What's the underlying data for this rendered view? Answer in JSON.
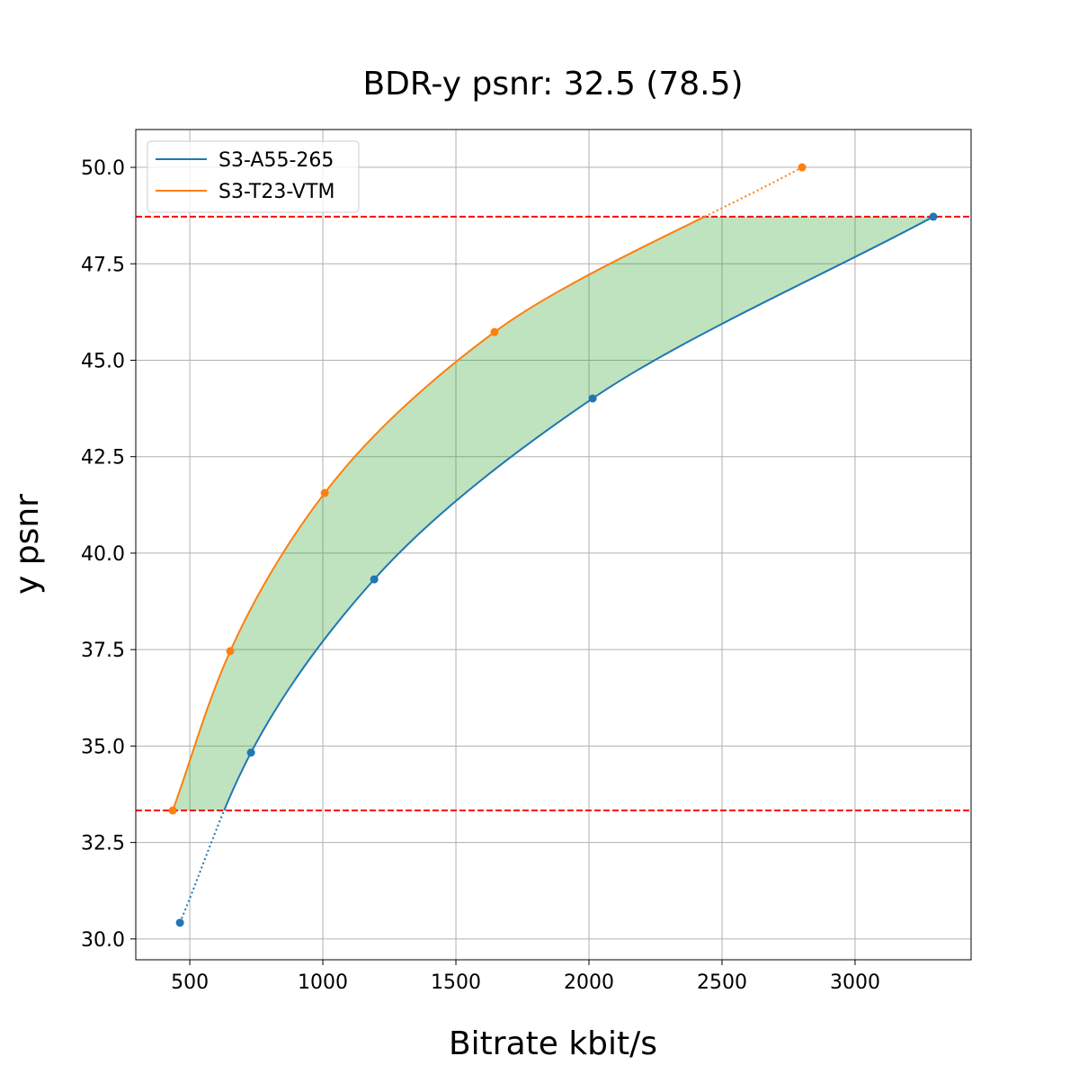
{
  "chart_data": {
    "type": "line",
    "title": "BDR-y psnr: 32.5 (78.5)",
    "xlabel": "Bitrate kbit/s",
    "ylabel": "y psnr",
    "xlim": [
      297,
      3436
    ],
    "ylim": [
      29.46,
      50.98
    ],
    "xticks": [
      500,
      1000,
      1500,
      2000,
      2500,
      3000
    ],
    "yticks": [
      30.0,
      32.5,
      35.0,
      37.5,
      40.0,
      42.5,
      45.0,
      47.5,
      50.0
    ],
    "xtick_labels": [
      "500",
      "1000",
      "1500",
      "2000",
      "2500",
      "3000"
    ],
    "ytick_labels": [
      "30.0",
      "32.5",
      "35.0",
      "37.5",
      "40.0",
      "42.5",
      "45.0",
      "47.5",
      "50.0"
    ],
    "grid": true,
    "legend_position": "top-left",
    "series": [
      {
        "name": "S3-A55-265",
        "color": "#1f77b4",
        "x": [
          463,
          730,
          1193,
          2014,
          3294
        ],
        "y": [
          30.42,
          34.83,
          39.32,
          44.01,
          48.72
        ]
      },
      {
        "name": "S3-T23-VTM",
        "color": "#ff7f0e",
        "x": [
          436,
          652,
          1007,
          1645,
          2801
        ],
        "y": [
          33.33,
          37.46,
          41.56,
          45.73,
          50.0
        ]
      }
    ],
    "reference_lines": {
      "y": [
        33.33,
        48.72
      ],
      "color": "#ff0000",
      "style": "dashed"
    },
    "fill_between": {
      "color": "#2ca02c",
      "opacity": 0.3,
      "y_range": [
        33.33,
        48.72
      ]
    }
  }
}
